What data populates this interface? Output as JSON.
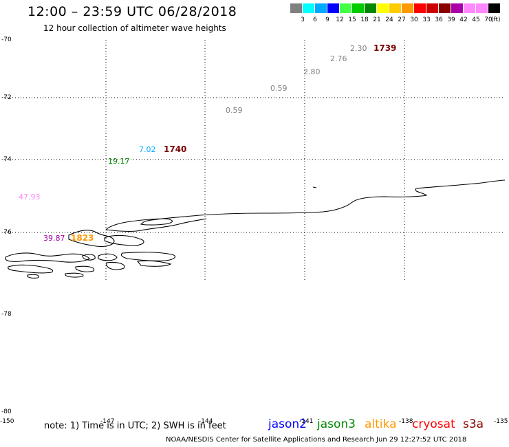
{
  "title": "12:00 – 23:59 UTC 06/28/2018",
  "subtitle": "12 hour collection of altimeter wave heights",
  "colorbar": {
    "unit": "(ft)",
    "colors": [
      "#808080",
      "#00ffff",
      "#00aaff",
      "#0000ff",
      "#44ff44",
      "#00cc00",
      "#008800",
      "#ffff00",
      "#ffcc00",
      "#ff9900",
      "#ff0000",
      "#cc0000",
      "#880000",
      "#aa00aa",
      "#ff88ff",
      "#ff88ff",
      "#000000"
    ],
    "labels": [
      "3",
      "6",
      "9",
      "12",
      "15",
      "18",
      "21",
      "24",
      "27",
      "30",
      "33",
      "36",
      "39",
      "42",
      "45",
      "70"
    ]
  },
  "axes": {
    "lat_labels": [
      "-70",
      "-72",
      "-74",
      "-76",
      "-78",
      "-80"
    ],
    "lon_labels": [
      "-150",
      "-147",
      "-144",
      "-141",
      "-138",
      "-135"
    ]
  },
  "observations": [
    {
      "value": "2.30",
      "color": "#808080"
    },
    {
      "value": "2.76",
      "color": "#808080"
    },
    {
      "value": "2.80",
      "color": "#808080"
    },
    {
      "value": "0.59",
      "color": "#808080"
    },
    {
      "value": "0.59",
      "color": "#808080"
    },
    {
      "value": "7.02",
      "color": "#00aaff"
    },
    {
      "value": "19.17",
      "color": "#008800"
    },
    {
      "value": "47.93",
      "color": "#ff88ff"
    },
    {
      "value": "39.87",
      "color": "#aa00aa"
    }
  ],
  "time_labels": [
    {
      "value": "1739",
      "color": "#7a0000"
    },
    {
      "value": "1740",
      "color": "#7a0000"
    },
    {
      "value": "1823",
      "color": "#ff9900"
    }
  ],
  "note": "note: 1) Time is in UTC; 2) SWH is in feet",
  "satellites": [
    {
      "name": "jason2",
      "color": "#0000ff"
    },
    {
      "name": "jason3",
      "color": "#008800"
    },
    {
      "name": "altika",
      "color": "#ff9900"
    },
    {
      "name": "cryosat",
      "color": "#ff0000"
    },
    {
      "name": "s3a",
      "color": "#880000"
    }
  ],
  "footer": "NOAA/NESDIS Center for Satellite Applications and Research   Jun 29 12:27:52 UTC 2018"
}
